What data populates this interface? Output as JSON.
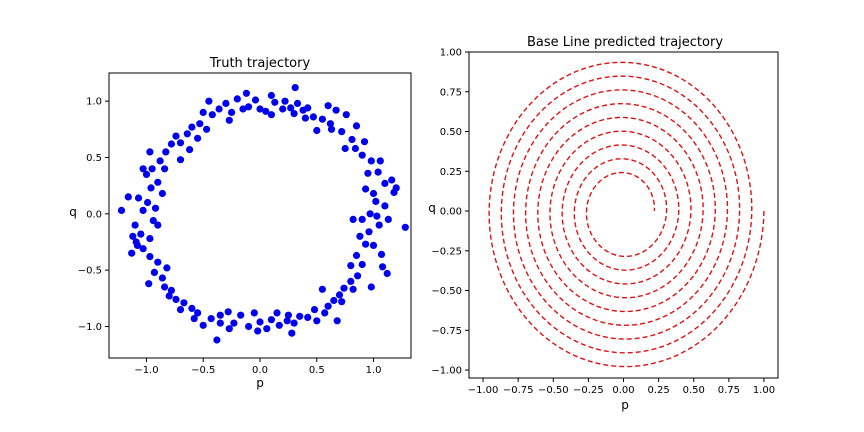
{
  "chart_data": [
    {
      "type": "scatter",
      "title": "Truth trajectory",
      "xlabel": "p",
      "ylabel": "q",
      "xlim": [
        -1.33,
        1.33
      ],
      "ylim": [
        -1.28,
        1.25
      ],
      "xticks": [
        -1.0,
        -0.5,
        0.0,
        0.5,
        1.0
      ],
      "xtick_labels": [
        "−1.0",
        "−0.5",
        "0.0",
        "0.5",
        "1.0"
      ],
      "yticks": [
        -1.0,
        -0.5,
        0.0,
        0.5,
        1.0
      ],
      "ytick_labels": [
        "−1.0",
        "−0.5",
        "0.0",
        "0.5",
        "1.0"
      ],
      "grid": false,
      "marker_color": "#0000ee",
      "points": [
        [
          0.0,
          0.93
        ],
        [
          0.05,
          0.91
        ],
        [
          0.13,
          0.99
        ],
        [
          0.2,
          0.93
        ],
        [
          0.27,
          0.94
        ],
        [
          0.31,
          1.12
        ],
        [
          0.33,
          0.98
        ],
        [
          0.4,
          0.85
        ],
        [
          0.47,
          0.86
        ],
        [
          0.55,
          0.84
        ],
        [
          0.6,
          0.96
        ],
        [
          0.67,
          0.92
        ],
        [
          0.76,
          0.88
        ],
        [
          0.72,
          0.73
        ],
        [
          0.81,
          0.66
        ],
        [
          0.84,
          0.58
        ],
        [
          0.92,
          0.64
        ],
        [
          0.98,
          0.47
        ],
        [
          1.06,
          0.47
        ],
        [
          1.04,
          0.37
        ],
        [
          0.95,
          0.36
        ],
        [
          1.1,
          0.27
        ],
        [
          1.18,
          0.19
        ],
        [
          0.93,
          0.22
        ],
        [
          1.02,
          0.11
        ],
        [
          1.1,
          0.07
        ],
        [
          1.28,
          -0.12
        ],
        [
          0.97,
          0.0
        ],
        [
          0.9,
          -0.05
        ],
        [
          1.05,
          -0.1
        ],
        [
          0.96,
          -0.16
        ],
        [
          0.88,
          -0.2
        ],
        [
          1.0,
          -0.28
        ],
        [
          1.07,
          -0.36
        ],
        [
          1.08,
          -0.47
        ],
        [
          0.85,
          -0.37
        ],
        [
          0.9,
          -0.45
        ],
        [
          0.86,
          -0.55
        ],
        [
          0.8,
          -0.6
        ],
        [
          0.74,
          -0.66
        ],
        [
          0.7,
          -0.72
        ],
        [
          0.82,
          -0.67
        ],
        [
          0.65,
          -0.77
        ],
        [
          0.6,
          -0.82
        ],
        [
          0.57,
          -0.88
        ],
        [
          0.48,
          -0.85
        ],
        [
          0.42,
          -0.92
        ],
        [
          0.35,
          -0.91
        ],
        [
          0.3,
          -0.97
        ],
        [
          0.24,
          -0.95
        ],
        [
          0.17,
          -0.99
        ],
        [
          0.1,
          -0.94
        ],
        [
          0.06,
          -1.02
        ],
        [
          0.0,
          -0.96
        ],
        [
          -0.05,
          -0.88
        ],
        [
          -0.1,
          -1.0
        ],
        [
          -0.17,
          -0.9
        ],
        [
          -0.23,
          -0.97
        ],
        [
          -0.28,
          -0.87
        ],
        [
          -0.35,
          -0.9
        ],
        [
          -0.38,
          -1.12
        ],
        [
          -0.43,
          -0.93
        ],
        [
          -0.5,
          -0.99
        ],
        [
          -0.55,
          -0.88
        ],
        [
          -0.6,
          -0.84
        ],
        [
          -0.67,
          -0.79
        ],
        [
          -0.74,
          -0.76
        ],
        [
          -0.78,
          -0.68
        ],
        [
          -0.84,
          -0.65
        ],
        [
          -0.86,
          -0.57
        ],
        [
          -0.93,
          -0.52
        ],
        [
          -0.9,
          -0.43
        ],
        [
          -0.97,
          -0.38
        ],
        [
          -1.03,
          -0.31
        ],
        [
          -0.97,
          -0.22
        ],
        [
          -1.05,
          -0.18
        ],
        [
          -1.12,
          -0.2
        ],
        [
          -1.08,
          -0.28
        ],
        [
          -1.13,
          -0.35
        ],
        [
          -0.94,
          -0.06
        ],
        [
          -0.92,
          0.05
        ],
        [
          -0.99,
          0.1
        ],
        [
          -1.03,
          0.03
        ],
        [
          -1.07,
          0.14
        ],
        [
          -1.22,
          0.03
        ],
        [
          -1.16,
          0.15
        ],
        [
          -0.96,
          0.23
        ],
        [
          -0.9,
          0.28
        ],
        [
          -1.0,
          0.35
        ],
        [
          -0.95,
          0.4
        ],
        [
          -1.03,
          0.4
        ],
        [
          -0.88,
          0.47
        ],
        [
          -0.83,
          0.55
        ],
        [
          -0.78,
          0.62
        ],
        [
          -0.7,
          0.63
        ],
        [
          -0.74,
          0.69
        ],
        [
          -0.64,
          0.71
        ],
        [
          -0.6,
          0.77
        ],
        [
          -0.53,
          0.8
        ],
        [
          -0.5,
          0.9
        ],
        [
          -0.42,
          0.88
        ],
        [
          -0.36,
          0.93
        ],
        [
          -0.3,
          0.98
        ],
        [
          -0.25,
          0.9
        ],
        [
          -0.2,
          1.02
        ],
        [
          -0.12,
          1.07
        ],
        [
          -0.1,
          0.95
        ],
        [
          -0.04,
          1.01
        ],
        [
          0.1,
          0.88
        ],
        [
          0.22,
          1.0
        ],
        [
          0.38,
          0.92
        ],
        [
          0.62,
          0.8
        ],
        [
          0.85,
          0.78
        ],
        [
          0.9,
          0.52
        ],
        [
          1.16,
          0.3
        ],
        [
          1.03,
          -0.02
        ],
        [
          1.13,
          -0.05
        ],
        [
          0.93,
          -0.27
        ],
        [
          1.12,
          -0.53
        ],
        [
          0.72,
          -0.78
        ],
        [
          0.5,
          -0.95
        ],
        [
          0.28,
          -1.06
        ],
        [
          -0.02,
          -1.04
        ],
        [
          -0.27,
          -1.02
        ],
        [
          -0.58,
          -0.93
        ],
        [
          -0.8,
          -0.73
        ],
        [
          -0.98,
          -0.62
        ],
        [
          -1.1,
          -0.1
        ],
        [
          -0.86,
          0.18
        ],
        [
          -0.84,
          0.4
        ],
        [
          -0.62,
          0.57
        ],
        [
          -0.47,
          0.75
        ],
        [
          -0.27,
          0.83
        ],
        [
          0.1,
          1.05
        ],
        [
          0.3,
          0.89
        ],
        [
          0.5,
          0.74
        ],
        [
          0.75,
          0.58
        ],
        [
          1.0,
          0.18
        ],
        [
          0.82,
          -0.05
        ],
        [
          0.98,
          -0.65
        ],
        [
          0.55,
          -0.67
        ],
        [
          0.15,
          -0.88
        ],
        [
          -0.35,
          -0.97
        ],
        [
          -0.7,
          -0.85
        ],
        [
          -0.9,
          -0.1
        ],
        [
          -0.7,
          0.48
        ],
        [
          -0.45,
          1.0
        ],
        [
          0.42,
          0.94
        ],
        [
          1.2,
          0.23
        ],
        [
          0.8,
          -0.46
        ],
        [
          -0.97,
          0.55
        ],
        [
          -1.09,
          -0.25
        ],
        [
          0.68,
          -0.95
        ],
        [
          -0.55,
          0.67
        ],
        [
          0.63,
          0.75
        ],
        [
          -0.82,
          -0.48
        ],
        [
          0.25,
          -0.9
        ],
        [
          -0.15,
          0.93
        ]
      ]
    },
    {
      "type": "line",
      "title": "Base Line predicted trajectory",
      "xlabel": "p",
      "ylabel": "q",
      "xlim": [
        -1.1,
        1.1
      ],
      "ylim": [
        -1.05,
        1.0
      ],
      "xticks": [
        -1.0,
        -0.75,
        -0.5,
        -0.25,
        0.0,
        0.25,
        0.5,
        0.75,
        1.0
      ],
      "xtick_labels": [
        "−1.00",
        "−0.75",
        "−0.50",
        "−0.25",
        "0.00",
        "0.25",
        "0.50",
        "0.75",
        "1.00"
      ],
      "yticks": [
        -1.0,
        -0.75,
        -0.5,
        -0.25,
        0.0,
        0.25,
        0.5,
        0.75,
        1.0
      ],
      "ytick_labels": [
        "−1.00",
        "−0.75",
        "−0.50",
        "−0.25",
        "0.00",
        "0.25",
        "0.50",
        "0.75",
        "1.00"
      ],
      "grid": false,
      "line_style": "dashed",
      "line_color": "#dd1111",
      "spiral": {
        "start_radius": 1.0,
        "end_radius": 0.22,
        "turns": 9,
        "start_angle_deg": 0,
        "direction": "clockwise"
      }
    }
  ]
}
